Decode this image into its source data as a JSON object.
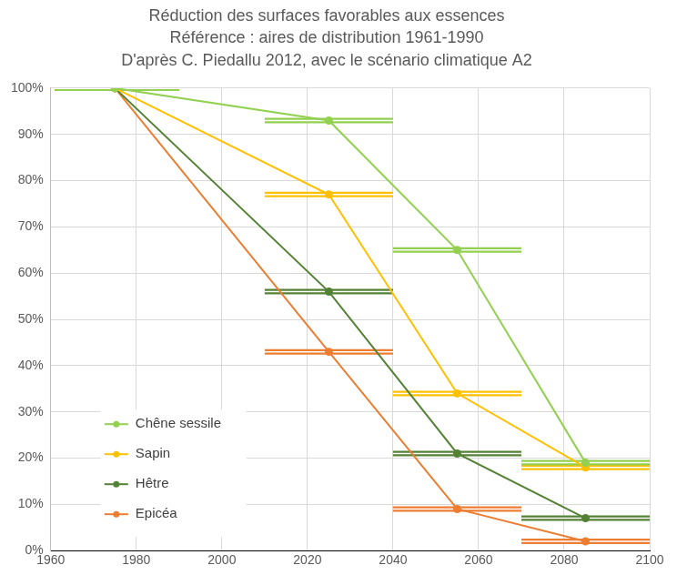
{
  "chart_data": {
    "type": "line",
    "title": [
      "Réduction des surfaces favorables aux essences",
      "Référence : aires de distribution 1961-1990",
      "D'après C. Piedallu 2012, avec le scénario climatique A2"
    ],
    "x": [
      1975,
      2025,
      2055,
      2085
    ],
    "periods": [
      [
        1961,
        1990
      ],
      [
        2010,
        2040
      ],
      [
        2040,
        2070
      ],
      [
        2070,
        2100
      ]
    ],
    "series": [
      {
        "name": "Chêne sessile",
        "color": "#92d050",
        "marker": "circle",
        "values": [
          100,
          93,
          65,
          19
        ]
      },
      {
        "name": "Sapin",
        "color": "#ffc000",
        "marker": "circle",
        "values": [
          100,
          77,
          34,
          18
        ]
      },
      {
        "name": "Hêtre",
        "color": "#548235",
        "marker": "circle",
        "values": [
          100,
          56,
          21,
          7
        ]
      },
      {
        "name": "Epicéa",
        "color": "#ed7d31",
        "marker": "circle",
        "values": [
          100,
          43,
          9,
          2
        ]
      }
    ],
    "xlim": [
      1960,
      2100
    ],
    "xticks": [
      1960,
      1980,
      2000,
      2020,
      2040,
      2060,
      2080,
      2100
    ],
    "ylim": [
      0,
      100
    ],
    "yticks": [
      {
        "value": 0,
        "label": "0%"
      },
      {
        "value": 10,
        "label": "10%"
      },
      {
        "value": 20,
        "label": "20%"
      },
      {
        "value": 30,
        "label": "30%"
      },
      {
        "value": 40,
        "label": "40%"
      },
      {
        "value": 50,
        "label": "50%"
      },
      {
        "value": 60,
        "label": "60%"
      },
      {
        "value": 70,
        "label": "70%"
      },
      {
        "value": 80,
        "label": "80%"
      },
      {
        "value": 90,
        "label": "90%"
      },
      {
        "value": 100,
        "label": "100%"
      }
    ],
    "grid": true,
    "legend": "lower left"
  }
}
